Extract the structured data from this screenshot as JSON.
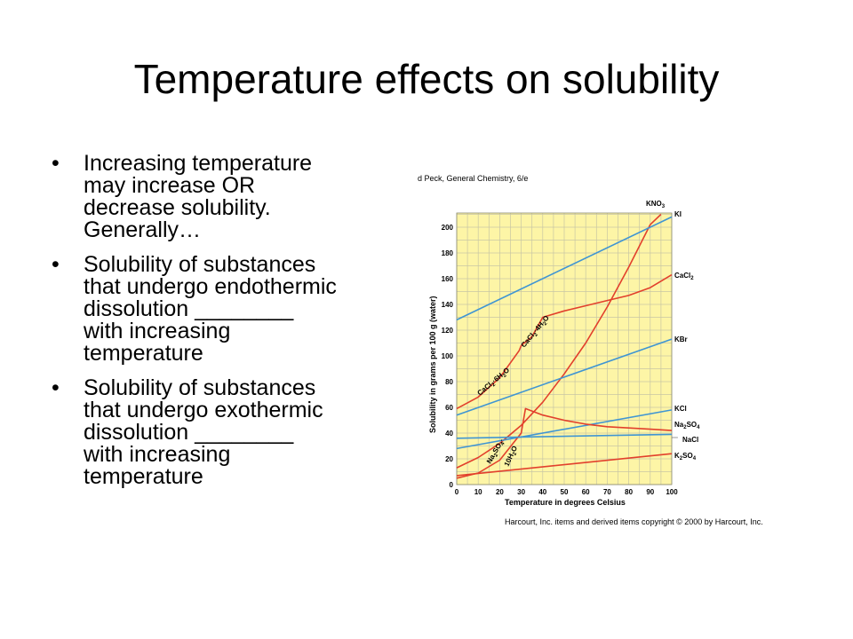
{
  "slide": {
    "title": "Temperature effects on solubility",
    "bullet_symbol": "•",
    "bullets": [
      [
        "Increasing temperature",
        "may increase OR",
        "decrease solubility.",
        "Generally…"
      ],
      [
        "Solubility of substances",
        "that undergo endothermic",
        "dissolution ________",
        "with increasing",
        "temperature"
      ],
      [
        "Solubility of substances",
        "that undergo exothermic",
        "dissolution ________",
        "with increasing",
        "temperature"
      ]
    ]
  },
  "figure": {
    "source_caption": "d Peck, General Chemistry, 6/e",
    "copyright": "Harcourt, Inc. items and derived items copyright © 2000 by Harcourt, Inc."
  },
  "colors": {
    "grid_bg": "#fdf5a6",
    "grid_line": "#c8c6a4",
    "blue": "#3f95d3",
    "red": "#e2402c"
  },
  "chart_data": {
    "type": "line",
    "xlabel": "Temperature in degrees Celsius",
    "ylabel": "Solubility in grams per 100 g (water)",
    "xlim": [
      0,
      100
    ],
    "ylim": [
      0,
      210
    ],
    "xticks": [
      "0",
      "10",
      "20",
      "30",
      "40",
      "50",
      "60",
      "70",
      "80",
      "90",
      "100"
    ],
    "yticks": [
      "0",
      "20",
      "40",
      "60",
      "80",
      "100",
      "120",
      "140",
      "160",
      "180",
      "200"
    ],
    "grid": true,
    "series": [
      {
        "name": "KNO3",
        "color": "blue_red",
        "line": "red",
        "label_html": [
          "KNO",
          "3"
        ],
        "x": [
          0,
          10,
          20,
          30,
          40,
          50,
          60,
          70,
          80,
          90,
          95
        ],
        "y": [
          13,
          21,
          32,
          46,
          64,
          86,
          110,
          138,
          169,
          202,
          210
        ]
      },
      {
        "name": "KI",
        "line": "blue",
        "label_html": [
          "KI",
          ""
        ],
        "x": [
          0,
          100
        ],
        "y": [
          128,
          208
        ]
      },
      {
        "name": "CaCl2",
        "line": "red",
        "label_html": [
          "CaCl",
          "2"
        ],
        "x": [
          0,
          10,
          20,
          29,
          30,
          35,
          40,
          50,
          60,
          70,
          80,
          90,
          100
        ],
        "y": [
          59,
          68,
          83,
          104,
          108,
          115,
          130,
          135,
          139,
          143,
          147,
          153,
          163
        ]
      },
      {
        "name": "KBr",
        "line": "blue",
        "label_html": [
          "KBr",
          ""
        ],
        "x": [
          0,
          100
        ],
        "y": [
          54,
          113
        ]
      },
      {
        "name": "KCl",
        "line": "blue",
        "label_html": [
          "KCl",
          ""
        ],
        "x": [
          0,
          100
        ],
        "y": [
          28,
          58
        ]
      },
      {
        "name": "Na2SO4",
        "line": "red",
        "label_html": [
          "Na",
          "2",
          "SO",
          "4"
        ],
        "x": [
          0,
          10,
          20,
          30,
          32,
          40,
          50,
          60,
          70,
          80,
          90,
          100
        ],
        "y": [
          5,
          9,
          19,
          40,
          59,
          54,
          50,
          47,
          45,
          44,
          43,
          42
        ]
      },
      {
        "name": "NaCl",
        "line": "blue",
        "label_html": [
          "NaCl",
          ""
        ],
        "x": [
          0,
          100
        ],
        "y": [
          36,
          39
        ]
      },
      {
        "name": "K2SO4",
        "line": "red",
        "label_html": [
          "K",
          "2",
          "SO",
          "4"
        ],
        "x": [
          0,
          100
        ],
        "y": [
          7,
          24
        ]
      }
    ],
    "annotations": [
      {
        "id": "cacl2-6h2o",
        "parts": [
          "CaCl",
          "2",
          "·6H",
          "2",
          "O"
        ]
      },
      {
        "id": "cacl2-4h2o",
        "parts": [
          "CaCl",
          "2",
          "·4H",
          "2",
          "O"
        ]
      },
      {
        "id": "na2so4-10h2o-a",
        "parts": [
          "Na",
          "2",
          "SO",
          "4",
          "·"
        ]
      },
      {
        "id": "na2so4-10h2o-b",
        "parts": [
          "10H",
          "2",
          "O",
          "",
          ""
        ]
      }
    ]
  }
}
